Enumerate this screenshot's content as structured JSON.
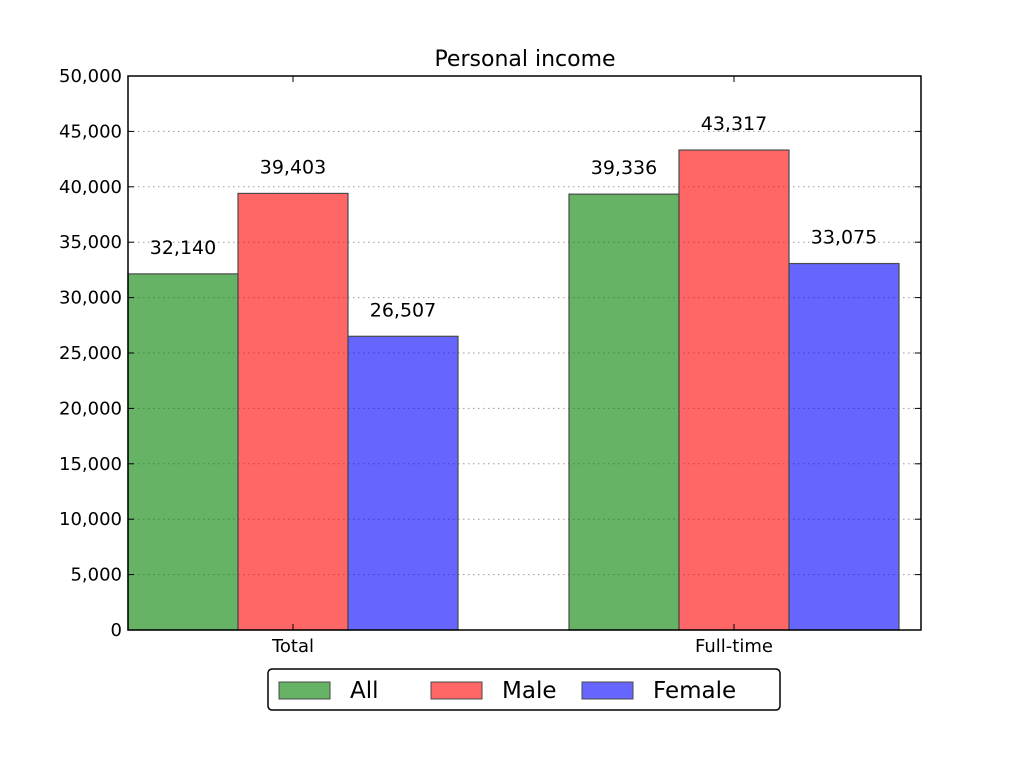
{
  "chart_data": {
    "type": "bar",
    "title": "Personal income",
    "xlabel": "",
    "ylabel": "",
    "categories": [
      "Total",
      "Full-time"
    ],
    "series": [
      {
        "name": "All",
        "values": [
          32140,
          39336
        ],
        "color": "#008000"
      },
      {
        "name": "Male",
        "values": [
          39403,
          43317
        ],
        "color": "#ff0000"
      },
      {
        "name": "Female",
        "values": [
          26507,
          33075
        ],
        "color": "#0000ff"
      }
    ],
    "value_labels": [
      [
        "32,140",
        "39,336"
      ],
      [
        "39,403",
        "43,317"
      ],
      [
        "26,507",
        "33,075"
      ]
    ],
    "ylim": [
      0,
      50000
    ],
    "yticks": [
      0,
      5000,
      10000,
      15000,
      20000,
      25000,
      30000,
      35000,
      40000,
      45000,
      50000
    ],
    "ytick_labels": [
      "0",
      "5,000",
      "10,000",
      "15,000",
      "20,000",
      "25,000",
      "30,000",
      "35,000",
      "40,000",
      "45,000",
      "50,000"
    ],
    "grid": "y-dotted",
    "legend_position": "bottom-center"
  }
}
